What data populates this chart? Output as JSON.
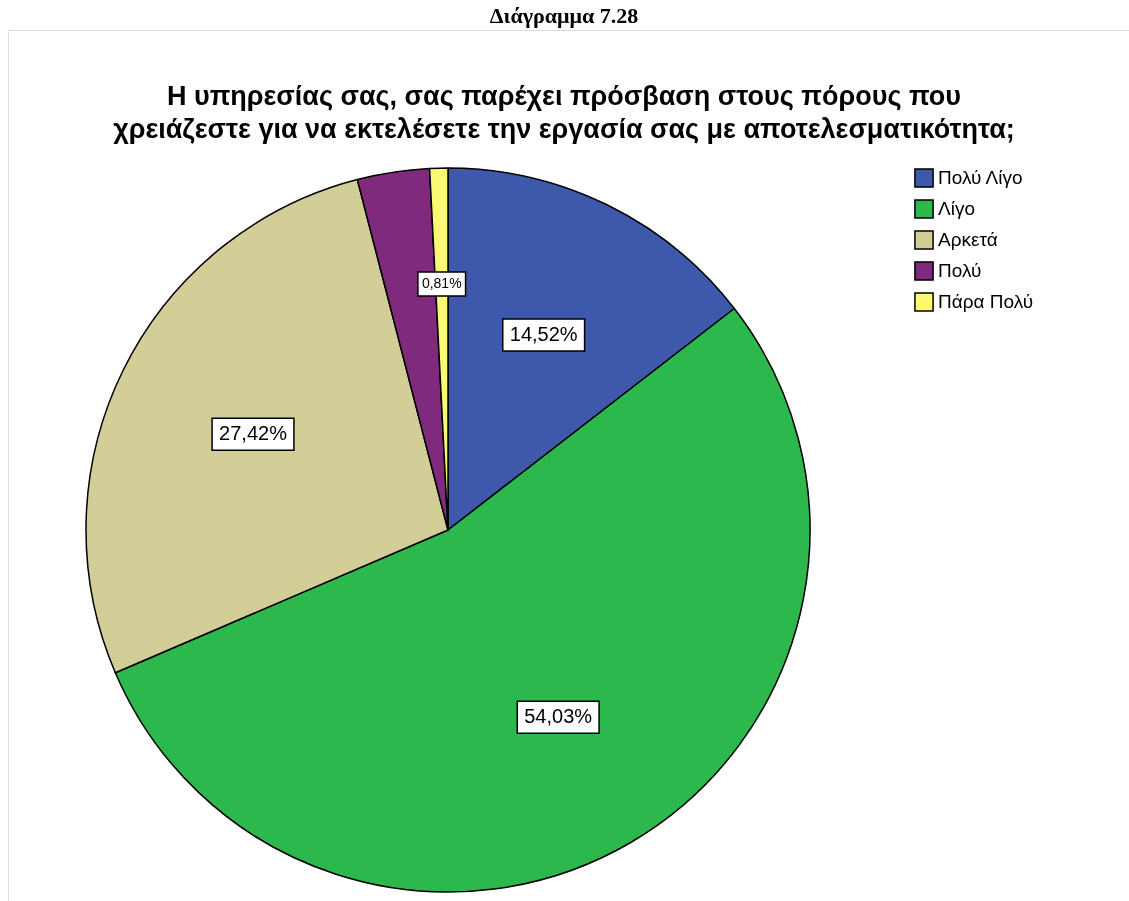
{
  "chart_data": {
    "type": "pie",
    "title": "Η υπηρεσίας σας, σας παρέχει πρόσβαση στους πόρους που\nχρειάζεστε για να εκτελέσετε την εργασία σας με αποτελεσματικότητα;",
    "annotations": [
      "Διάγραμμα 7.28"
    ],
    "categories": [
      "Πολύ Λίγο",
      "Λίγο",
      "Αρκετά",
      "Πολύ",
      "Πάρα Πολύ"
    ],
    "values": [
      14.52,
      54.03,
      27.42,
      3.22,
      0.81
    ],
    "colors": [
      "#3e58ac",
      "#2db84d",
      "#d3ce97",
      "#7f2a7d",
      "#fbf873"
    ],
    "value_labels": [
      "14,52%",
      "54,03%",
      "27,42%",
      null,
      "0,81%"
    ],
    "legend": "top right"
  }
}
